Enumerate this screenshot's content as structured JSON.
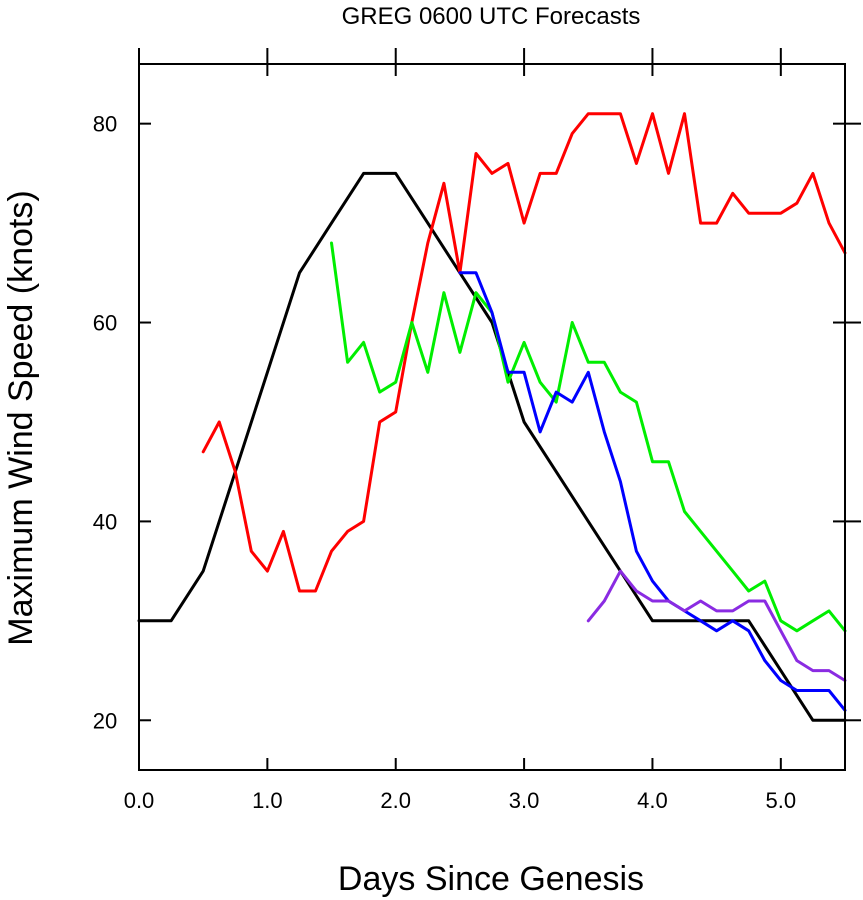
{
  "chart_data": {
    "type": "line",
    "title": "GREG 0600 UTC Forecasts",
    "xlabel": "Days Since Genesis",
    "ylabel": "Maximum Wind Speed (knots)",
    "xlim": [
      0,
      5.5
    ],
    "ylim": [
      15,
      86
    ],
    "x_ticks": [
      0,
      1,
      2,
      3,
      4,
      5
    ],
    "x_tick_labels": [
      "0.0",
      "1.0",
      "2.0",
      "3.0",
      "4.0",
      "5.0"
    ],
    "y_ticks": [
      20,
      40,
      60,
      80
    ],
    "y_tick_labels": [
      "20",
      "40",
      "60",
      "80"
    ],
    "grid": false,
    "legend": "none",
    "series": [
      {
        "color": "#000000",
        "x": [
          0,
          0.25,
          0.5,
          0.75,
          1.0,
          1.25,
          1.5,
          1.75,
          2.0,
          2.25,
          2.5,
          2.75,
          3.0,
          3.25,
          3.5,
          3.75,
          4.0,
          4.25,
          4.5,
          4.75,
          5.0,
          5.25,
          5.5
        ],
        "y": [
          30,
          30,
          35,
          45,
          55,
          65,
          70,
          75,
          75,
          70,
          65,
          60,
          50,
          45,
          40,
          35,
          30,
          30,
          30,
          30,
          25,
          20,
          20
        ]
      },
      {
        "color": "#ff0000",
        "x": [
          0.5,
          0.625,
          0.75,
          0.875,
          1.0,
          1.125,
          1.25,
          1.375,
          1.5,
          1.625,
          1.75,
          1.875,
          2.0,
          2.125,
          2.25,
          2.375,
          2.5,
          2.625,
          2.75,
          2.875,
          3.0,
          3.125,
          3.25,
          3.375,
          3.5,
          3.625,
          3.75,
          3.875,
          4.0,
          4.125,
          4.25,
          4.375,
          4.5,
          4.625,
          4.75,
          4.875,
          5.0,
          5.125,
          5.25,
          5.375,
          5.5
        ],
        "y": [
          47,
          50,
          45,
          37,
          35,
          39,
          33,
          33,
          37,
          39,
          40,
          50,
          51,
          60,
          68,
          74,
          65,
          77,
          75,
          76,
          70,
          75,
          75,
          79,
          81,
          81,
          81,
          76,
          81,
          75,
          81,
          70,
          70,
          73,
          71,
          71,
          71,
          72,
          75,
          70,
          67
        ]
      },
      {
        "color": "#00ee00",
        "x": [
          1.5,
          1.625,
          1.75,
          1.875,
          2.0,
          2.125,
          2.25,
          2.375,
          2.5,
          2.625,
          2.75,
          2.875,
          3.0,
          3.125,
          3.25,
          3.375,
          3.5,
          3.625,
          3.75,
          3.875,
          4.0,
          4.125,
          4.25,
          4.375,
          4.5,
          4.625,
          4.75,
          4.875,
          5.0,
          5.125,
          5.25,
          5.375,
          5.5
        ],
        "y": [
          68,
          56,
          58,
          53,
          54,
          60,
          55,
          63,
          57,
          63,
          61,
          54,
          58,
          54,
          52,
          60,
          56,
          56,
          53,
          52,
          46,
          46,
          41,
          39,
          37,
          35,
          33,
          34,
          30,
          29,
          30,
          31,
          29
        ]
      },
      {
        "color": "#0000ff",
        "x": [
          2.5,
          2.625,
          2.75,
          2.875,
          3.0,
          3.125,
          3.25,
          3.375,
          3.5,
          3.625,
          3.75,
          3.875,
          4.0,
          4.125,
          4.25,
          4.375,
          4.5,
          4.625,
          4.75,
          4.875,
          5.0,
          5.125,
          5.25,
          5.375,
          5.5
        ],
        "y": [
          65,
          65,
          61,
          55,
          55,
          49,
          53,
          52,
          55,
          49,
          44,
          37,
          34,
          32,
          31,
          30,
          29,
          30,
          29,
          26,
          24,
          23,
          23,
          23,
          21
        ]
      },
      {
        "color": "#8a2be2",
        "x": [
          3.5,
          3.625,
          3.75,
          3.875,
          4.0,
          4.125,
          4.25,
          4.375,
          4.5,
          4.625,
          4.75,
          4.875,
          5.0,
          5.125,
          5.25,
          5.375,
          5.5
        ],
        "y": [
          30,
          32,
          35,
          33,
          32,
          32,
          31,
          32,
          31,
          31,
          32,
          32,
          29,
          26,
          25,
          25,
          24
        ]
      }
    ]
  }
}
